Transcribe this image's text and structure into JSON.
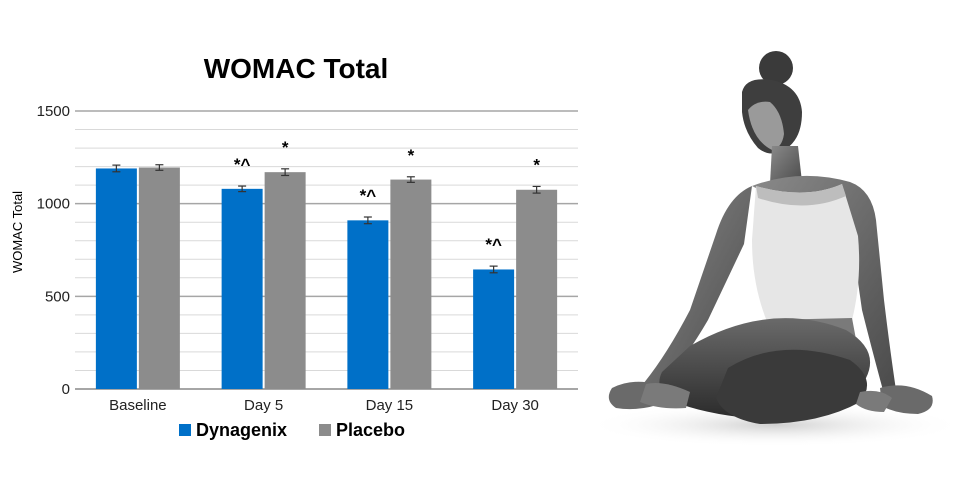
{
  "chart_data": {
    "type": "bar",
    "title": "WOMAC Total",
    "ylabel": "WOMAC Total",
    "xlabel": "",
    "ylim": [
      0,
      1500
    ],
    "yticks": [
      0,
      500,
      1000,
      1500
    ],
    "minor_gridline_step": 100,
    "categories": [
      "Baseline",
      "Day 5",
      "Day 15",
      "Day 30"
    ],
    "series": [
      {
        "name": "Dynagenix",
        "color": "#0070C8",
        "values": [
          1190,
          1080,
          910,
          645
        ],
        "error": [
          18,
          15,
          18,
          18
        ],
        "annotations": [
          "",
          "*^",
          "*^",
          "*^"
        ]
      },
      {
        "name": "Placebo",
        "color": "#8C8C8C",
        "values": [
          1195,
          1170,
          1130,
          1075
        ],
        "error": [
          15,
          18,
          15,
          18
        ],
        "annotations": [
          "",
          "*",
          "*",
          "*"
        ]
      }
    ],
    "legend_position": "bottom-center"
  },
  "photo": {
    "description_icon": "yoga-pose-photo"
  }
}
